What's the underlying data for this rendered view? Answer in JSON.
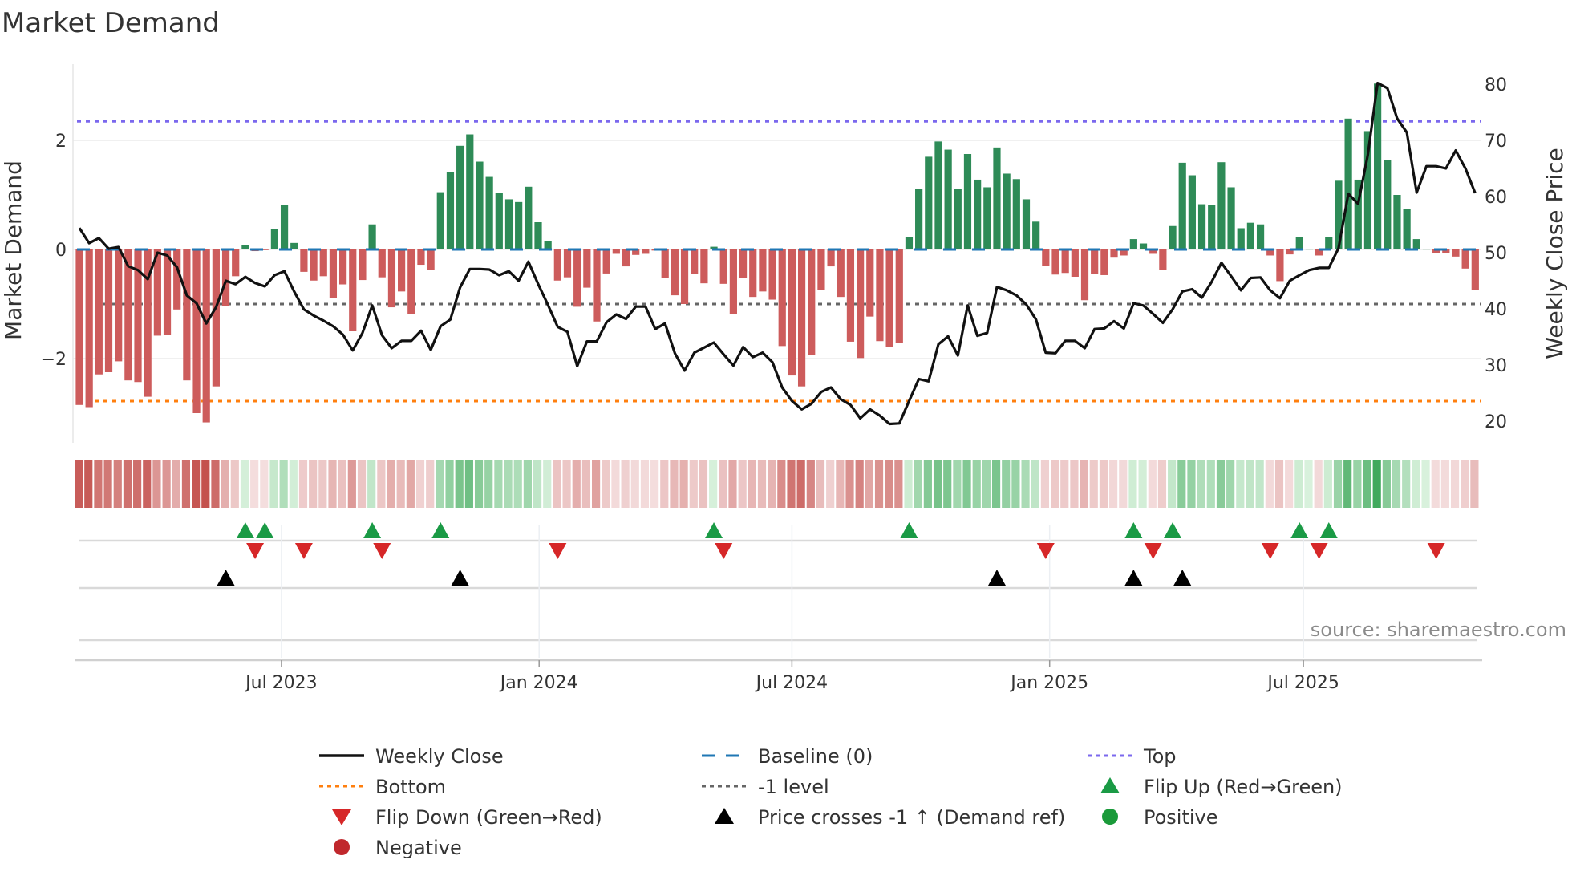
{
  "title": "Market Demand",
  "source": "source: sharemaestro.com",
  "chart_data": {
    "type": "bar",
    "title": "Market Demand",
    "ylabel": "Market Demand",
    "y2label": "Weekly Close Price",
    "ylim": [
      -3.3,
      3.5
    ],
    "y2lim": [
      18,
      83
    ],
    "yticks": [
      {
        "v": 2,
        "label": "2"
      },
      {
        "v": 0,
        "label": "0"
      },
      {
        "v": -2,
        "label": "−2"
      }
    ],
    "y2ticks": [
      {
        "v": 80,
        "label": "80"
      },
      {
        "v": 70,
        "label": "70"
      },
      {
        "v": 60,
        "label": "60"
      },
      {
        "v": 50,
        "label": "50"
      },
      {
        "v": 40,
        "label": "40"
      },
      {
        "v": 30,
        "label": "30"
      },
      {
        "v": 20,
        "label": "20"
      }
    ],
    "xticks": [
      {
        "week": 20.7,
        "label": "Jul 2023"
      },
      {
        "week": 47.1,
        "label": "Jan 2024"
      },
      {
        "week": 73.0,
        "label": "Jul 2024"
      },
      {
        "week": 99.4,
        "label": "Jan 2025"
      },
      {
        "week": 125.4,
        "label": "Jul 2025"
      }
    ],
    "reference_lines": {
      "top": 2.35,
      "bottom": -2.78,
      "minus_one": -1,
      "baseline": 0
    },
    "demand": [
      -2.85,
      -2.89,
      -2.29,
      -2.25,
      -2.05,
      -2.4,
      -2.43,
      -2.7,
      -1.58,
      -1.57,
      -1.1,
      -2.4,
      -3.0,
      -3.17,
      -2.51,
      -1.03,
      -0.49,
      0.08,
      -0.03,
      -0.01,
      0.37,
      0.81,
      0.12,
      -0.41,
      -0.57,
      -0.49,
      -0.89,
      -0.64,
      -1.5,
      -0.56,
      0.46,
      -0.51,
      -1.06,
      -0.77,
      -1.19,
      -0.28,
      -0.37,
      1.05,
      1.42,
      1.9,
      2.11,
      1.61,
      1.33,
      1.03,
      0.92,
      0.87,
      1.15,
      0.5,
      0.15,
      -0.57,
      -0.51,
      -1.05,
      -0.7,
      -1.32,
      -0.44,
      -0.08,
      -0.31,
      -0.1,
      -0.08,
      -0.02,
      -0.52,
      -0.84,
      -1.0,
      -0.45,
      -0.62,
      0.05,
      -0.63,
      -1.18,
      -0.52,
      -0.87,
      -0.77,
      -0.92,
      -1.77,
      -2.31,
      -2.51,
      -1.93,
      -0.75,
      -0.31,
      -0.87,
      -1.69,
      -1.99,
      -1.23,
      -1.68,
      -1.79,
      -1.71,
      0.23,
      1.11,
      1.7,
      1.98,
      1.83,
      1.11,
      1.75,
      1.28,
      1.14,
      1.87,
      1.39,
      1.29,
      0.92,
      0.51,
      -0.3,
      -0.46,
      -0.43,
      -0.5,
      -0.93,
      -0.45,
      -0.47,
      -0.15,
      -0.11,
      0.19,
      0.11,
      -0.08,
      -0.38,
      0.43,
      1.59,
      1.36,
      0.83,
      0.82,
      1.6,
      1.14,
      0.39,
      0.49,
      0.46,
      -0.11,
      -0.58,
      -0.09,
      0.23,
      0.01,
      -0.11,
      0.23,
      1.26,
      2.4,
      1.28,
      2.17,
      3.04,
      1.64,
      1.0,
      0.75,
      0.19,
      0.01,
      -0.06,
      -0.07,
      -0.13,
      -0.35,
      -0.75
    ],
    "weekly_close": [
      54.4,
      51.7,
      52.6,
      50.7,
      51.0,
      47.6,
      46.9,
      45.3,
      50.0,
      49.5,
      47.4,
      42.4,
      41.0,
      37.4,
      40.3,
      45.0,
      44.4,
      45.7,
      44.6,
      44.0,
      46.0,
      46.7,
      43.1,
      39.9,
      38.8,
      37.9,
      36.9,
      35.4,
      32.6,
      35.7,
      40.6,
      35.3,
      33.0,
      34.3,
      34.3,
      36.1,
      32.7,
      36.9,
      38.1,
      43.8,
      47.1,
      47.1,
      47.0,
      46.0,
      46.7,
      45.0,
      48.4,
      44.4,
      40.7,
      36.8,
      35.9,
      29.8,
      34.2,
      34.2,
      37.6,
      39.0,
      38.2,
      40.4,
      40.4,
      36.4,
      37.4,
      32.1,
      29.0,
      32.2,
      33.1,
      34.0,
      31.9,
      29.9,
      33.2,
      31.4,
      32.2,
      30.5,
      26.0,
      23.6,
      22.1,
      23.1,
      25.2,
      26.0,
      23.9,
      22.9,
      20.5,
      22.1,
      21.0,
      19.5,
      19.6,
      23.6,
      27.5,
      27.1,
      33.7,
      35.1,
      31.7,
      40.6,
      35.2,
      35.7,
      43.9,
      43.3,
      42.4,
      40.8,
      38.1,
      32.2,
      32.1,
      34.3,
      34.3,
      33.0,
      36.4,
      36.5,
      37.8,
      36.5,
      41.0,
      40.6,
      39.1,
      37.5,
      39.9,
      43.1,
      43.5,
      42.0,
      44.8,
      48.2,
      45.8,
      43.3,
      45.5,
      45.6,
      43.3,
      41.9,
      45.0,
      46.0,
      46.9,
      47.3,
      47.3,
      50.8,
      60.5,
      58.7,
      67.4,
      80.2,
      79.3,
      73.9,
      71.4,
      60.7,
      65.4,
      65.4,
      65.0,
      68.2,
      65.0,
      60.6
    ],
    "flip_up_weeks": [
      17,
      19,
      30,
      37,
      65,
      85,
      108,
      112,
      125,
      128
    ],
    "flip_down_weeks": [
      18,
      23,
      31,
      49,
      66,
      99,
      110,
      122,
      127,
      139
    ],
    "price_cross_weeks": [
      15,
      39,
      94,
      108,
      113
    ],
    "legend": [
      {
        "label": "Weekly Close",
        "icon": "solid-line",
        "color": "#111111"
      },
      {
        "label": "Baseline (0)",
        "icon": "dash-line",
        "color": "#1f77b4"
      },
      {
        "label": "Top",
        "icon": "dot-line",
        "color": "#7b68ee"
      },
      {
        "label": "Bottom",
        "icon": "dot-line",
        "color": "#ff7f0e"
      },
      {
        "label": "-1 level",
        "icon": "dot-line",
        "color": "#666666"
      },
      {
        "label": "Flip Up (Red→Green)",
        "icon": "triangle-up",
        "color": "#1a9a45"
      },
      {
        "label": "Flip Down (Green→Red)",
        "icon": "triangle-down",
        "color": "#d62728"
      },
      {
        "label": "Price crosses -1 ↑ (Demand ref)",
        "icon": "triangle-up",
        "color": "#000000"
      },
      {
        "label": "Positive",
        "icon": "circle",
        "color": "#1a9a3a"
      },
      {
        "label": "Negative",
        "icon": "circle",
        "color": "#c0282d"
      }
    ],
    "colors": {
      "positive_bar": "#2e8b57",
      "negative_bar": "#cd5c5c",
      "price_line": "#111111"
    }
  }
}
